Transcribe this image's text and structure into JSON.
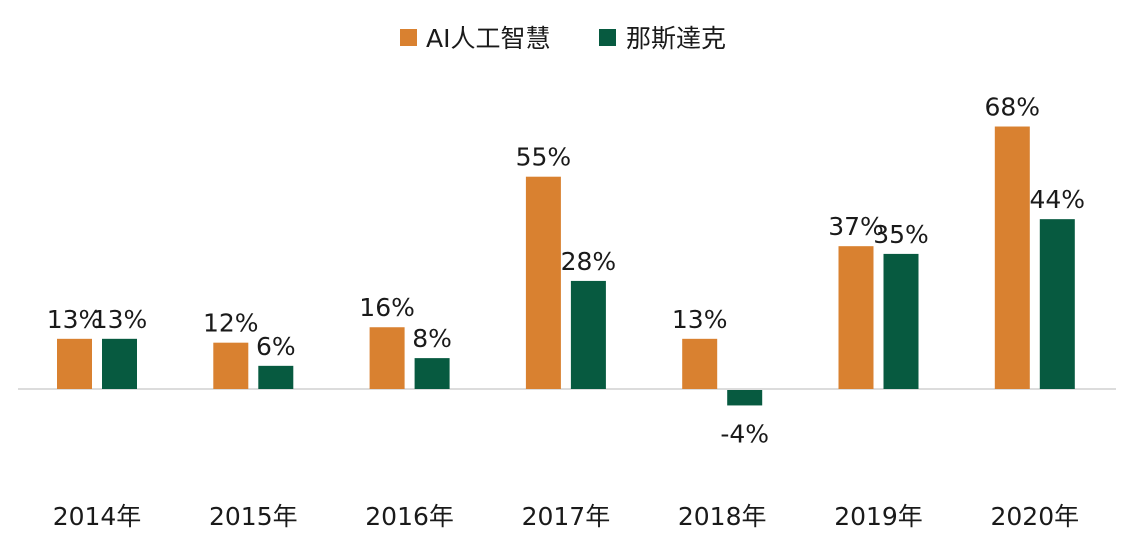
{
  "chart_data": {
    "type": "bar",
    "categories": [
      "2014年",
      "2015年",
      "2016年",
      "2017年",
      "2018年",
      "2019年",
      "2020年"
    ],
    "series": [
      {
        "name": "AI人工智慧",
        "color": "#D98130",
        "values": [
          13,
          12,
          16,
          55,
          13,
          37,
          68
        ],
        "labels": [
          "13%",
          "12%",
          "16%",
          "55%",
          "13%",
          "37%",
          "68%"
        ]
      },
      {
        "name": "那斯達克",
        "color": "#075A40",
        "values": [
          13,
          6,
          8,
          28,
          -4,
          35,
          44
        ],
        "labels": [
          "13%",
          "6%",
          "8%",
          "28%",
          "-4%",
          "35%",
          "44%"
        ]
      }
    ],
    "legend_position": "top-center",
    "grid": false,
    "unit": "%",
    "zero_line_color": "#d0d0d0"
  }
}
